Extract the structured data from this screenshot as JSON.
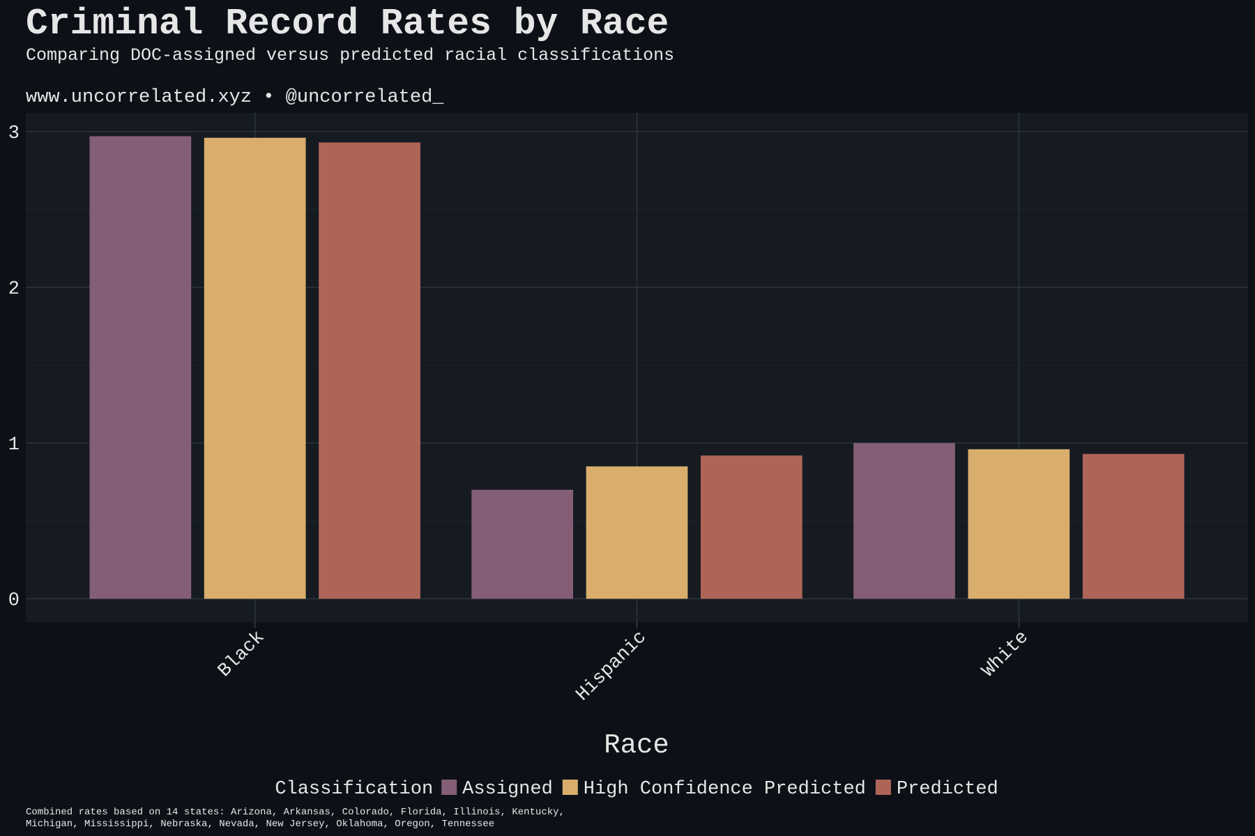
{
  "chart_data": {
    "type": "bar",
    "title": "Criminal Record Rates by Race",
    "subtitle": "Comparing DOC-assigned versus predicted racial classifications",
    "source": "www.uncorrelated.xyz • @uncorrelated_",
    "x_label": "Race",
    "legend_title": "Classification",
    "footnote": [
      "Combined rates based on 14 states: Arizona, Arkansas, Colorado, Florida, Illinois, Kentucky,",
      "Michigan, Mississippi, Nebraska, Nevada, New Jersey, Oklahoma, Oregon, Tennessee"
    ],
    "categories": [
      "Black",
      "Hispanic",
      "White"
    ],
    "series": [
      {
        "name": "Assigned",
        "color": "#845d77",
        "values": [
          2.97,
          0.7,
          1.0
        ]
      },
      {
        "name": "High Confidence Predicted",
        "color": "#d9ae6d",
        "values": [
          2.96,
          0.85,
          0.96
        ]
      },
      {
        "name": "Predicted",
        "color": "#ae6558",
        "values": [
          2.93,
          0.92,
          0.93
        ]
      }
    ],
    "ylim": [
      -0.15,
      3.12
    ],
    "yticks": [
      0,
      1,
      2,
      3
    ],
    "grid": true,
    "legend_position": "bottom"
  }
}
